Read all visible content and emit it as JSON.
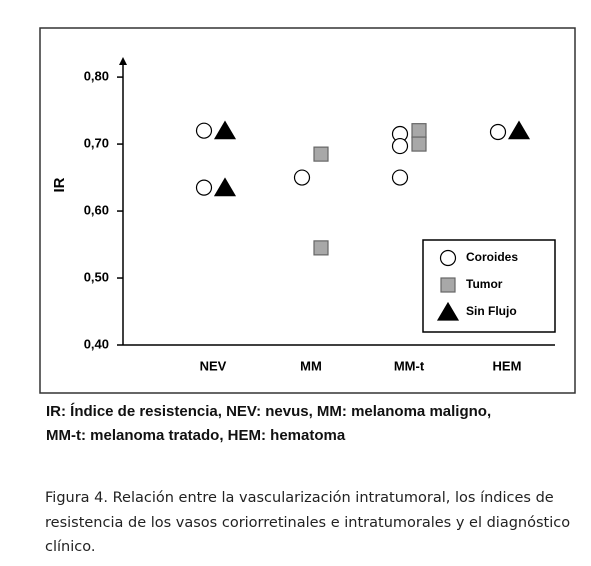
{
  "chart_data": {
    "type": "scatter",
    "ylabel": "IR",
    "categories": [
      "NEV",
      "MM",
      "MM-t",
      "HEM"
    ],
    "ylim": [
      0.4,
      0.83
    ],
    "yticks": [
      {
        "value": 0.4,
        "label": "0,40"
      },
      {
        "value": 0.5,
        "label": "0,50"
      },
      {
        "value": 0.6,
        "label": "0,60"
      },
      {
        "value": 0.7,
        "label": "0,70"
      },
      {
        "value": 0.8,
        "label": "0,80"
      }
    ],
    "legend": "lower right",
    "series": [
      {
        "name": "Coroides",
        "marker": "circle",
        "color": "#ffffff",
        "x": [
          "NEV",
          "NEV",
          "MM",
          "MM-t",
          "MM-t",
          "MM-t",
          "HEM"
        ],
        "values": [
          0.72,
          0.635,
          0.65,
          0.715,
          0.697,
          0.65,
          0.718
        ]
      },
      {
        "name": "Tumor",
        "marker": "square",
        "color": "#a8a8a8",
        "x": [
          "MM",
          "MM",
          "MM-t",
          "MM-t"
        ],
        "values": [
          0.685,
          0.545,
          0.72,
          0.7
        ]
      },
      {
        "name": "Sin Flujo",
        "marker": "triangle",
        "color": "#000000",
        "x": [
          "NEV",
          "NEV",
          "HEM"
        ],
        "values": [
          0.72,
          0.635,
          0.72
        ]
      }
    ]
  },
  "notes": [
    "IR: Índice de resistencia, NEV: nevus, MM: melanoma maligno,",
    "MM-t: melanoma tratado, HEM: hematoma"
  ],
  "caption": [
    "Figura 4. Relación entre la vascularización intratumoral, los índices de",
    "resistencia de los vasos coriorretinales e intratumorales y el diagnóstico",
    "clínico."
  ]
}
